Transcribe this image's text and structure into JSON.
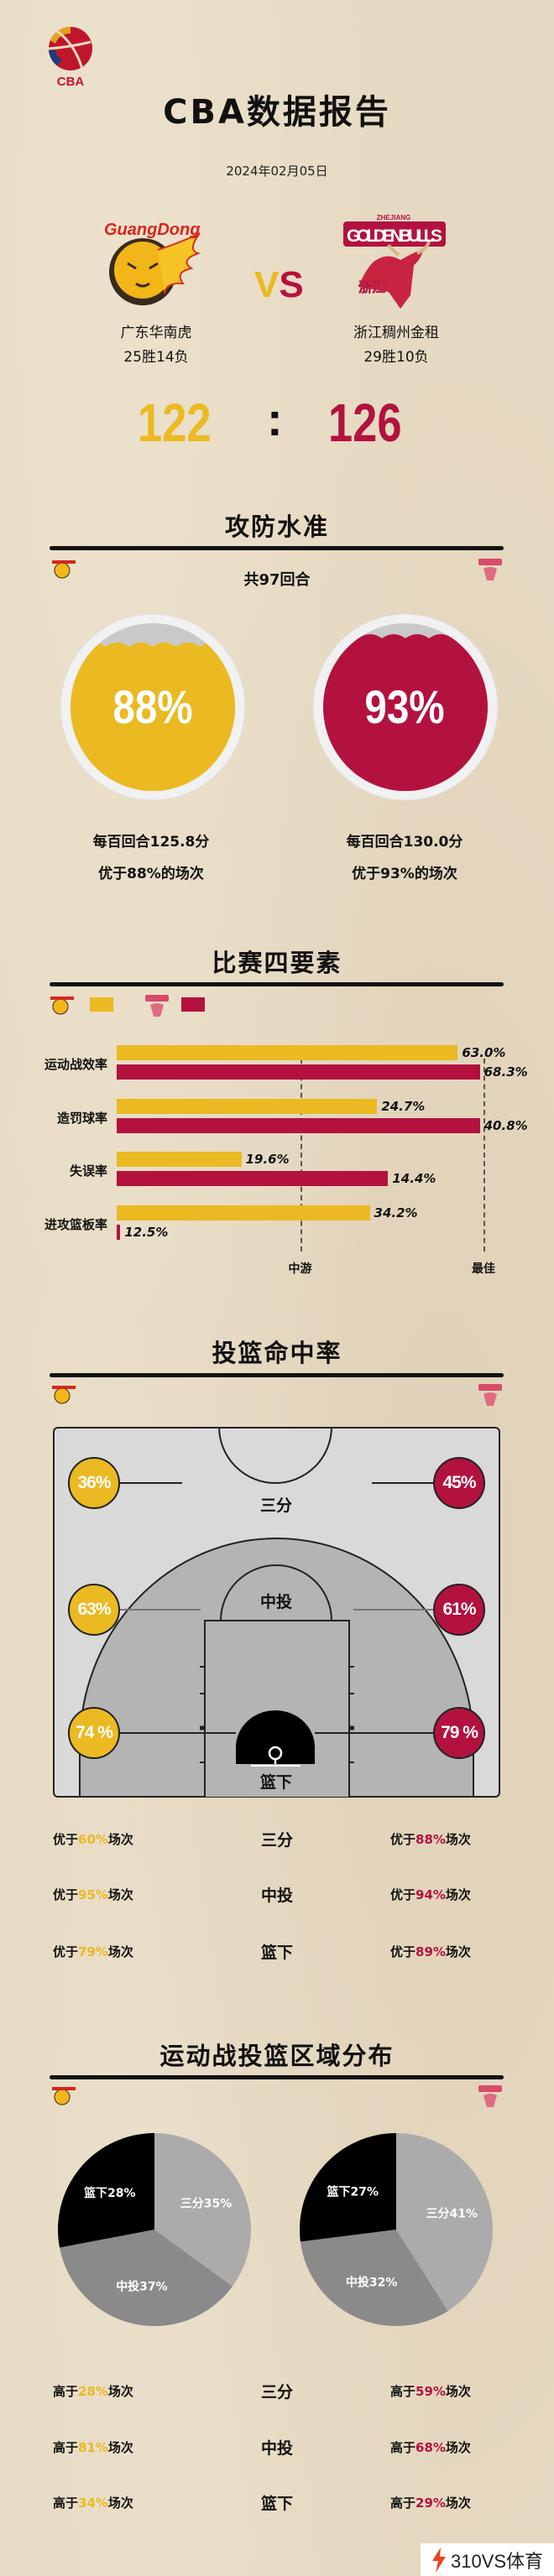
{
  "header": {
    "title": "CBA数据报告",
    "date": "2024年02月05日",
    "league_logo_text": "CBA"
  },
  "teams": {
    "home": {
      "name": "广东华南虎",
      "record": "25胜14负",
      "score": "122",
      "logo_text": "GuangDong",
      "color": "#ebb921"
    },
    "away": {
      "name": "浙江稠州金租",
      "record": "29胜10负",
      "score": "126",
      "logo_text": "GOLDENBULLS",
      "logo_sub": "ZHEJIANG",
      "logo_cn": "浙江",
      "color": "#b3123f"
    }
  },
  "vs": {
    "v": "V",
    "s": "S"
  },
  "score_sep": ":",
  "rating": {
    "title": "攻防水准",
    "possessions": "共97回合",
    "home": {
      "pct_label": "88%",
      "level": 0.88,
      "per100": "每百回合125.8分",
      "better": "优于88%的场次"
    },
    "away": {
      "pct_label": "93%",
      "level": 0.93,
      "per100": "每百回合130.0分",
      "better": "优于93%的场次"
    }
  },
  "four_factors_title": "比赛四要素",
  "shooting": {
    "title": "投篮命中率",
    "prefix": "优于",
    "suffix": "场次",
    "zones": [
      {
        "label": "三分",
        "home": "36%",
        "away": "45%",
        "home_better": "60%",
        "away_better": "88%"
      },
      {
        "label": "中投",
        "home": "63%",
        "away": "61%",
        "home_better": "95%",
        "away_better": "94%"
      },
      {
        "label": "篮下",
        "home": "74 %",
        "away": "79 %",
        "home_better": "79%",
        "away_better": "89%"
      }
    ]
  },
  "distribution": {
    "title": "运动战投篮区域分布",
    "prefix": "高于",
    "suffix": "场次",
    "rows": [
      {
        "label": "三分",
        "home_higher": "28%",
        "away_higher": "59%"
      },
      {
        "label": "中投",
        "home_higher": "81%",
        "away_higher": "68%"
      },
      {
        "label": "篮下",
        "home_higher": "34%",
        "away_higher": "29%"
      }
    ]
  },
  "chart_data": [
    {
      "type": "bar",
      "orientation": "horizontal",
      "categories": [
        "运动战效率",
        "造罚球率",
        "失误率",
        "进攻篮板率"
      ],
      "series": [
        {
          "team": "home",
          "color": "#ebb921",
          "labels": [
            "63.0%",
            "24.7%",
            "19.6%",
            "34.2%"
          ],
          "values": [
            63.0,
            24.7,
            19.6,
            34.2
          ],
          "rank_level": [
            0.93,
            0.71,
            0.34,
            0.69
          ]
        },
        {
          "team": "away",
          "color": "#b3123f",
          "labels": [
            "68.3%",
            "40.8%",
            "14.4%",
            "12.5%"
          ],
          "values": [
            68.3,
            40.8,
            14.4,
            12.5
          ],
          "rank_level": [
            0.99,
            0.99,
            0.74,
            0.01
          ]
        }
      ],
      "reference_lines": [
        {
          "label": "中游",
          "level": 0.5
        },
        {
          "label": "最佳",
          "level": 1.0
        }
      ],
      "legend": "top-left"
    },
    {
      "type": "pie",
      "team": "home",
      "slices": [
        {
          "label": "三分",
          "value": 35,
          "text": "三分35%",
          "color": "#ababab"
        },
        {
          "label": "中投",
          "value": 37,
          "text": "中投37%",
          "color": "#8a8a8a"
        },
        {
          "label": "篮下",
          "value": 28,
          "text": "篮下28%",
          "color": "#000000"
        }
      ]
    },
    {
      "type": "pie",
      "team": "away",
      "slices": [
        {
          "label": "三分",
          "value": 41,
          "text": "三分41%",
          "color": "#ababab"
        },
        {
          "label": "中投",
          "value": 32,
          "text": "中投32%",
          "color": "#8a8a8a"
        },
        {
          "label": "篮下",
          "value": 27,
          "text": "篮下27%",
          "color": "#000000"
        }
      ]
    }
  ],
  "watermark": "310VS体育"
}
